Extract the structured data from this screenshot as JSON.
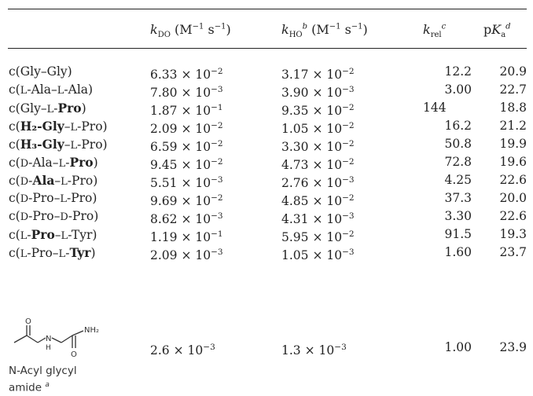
{
  "header": {
    "kdo": {
      "sym": "k",
      "sub": "DO",
      "unit": "(M",
      "exp": "−1",
      "unit2": " s",
      "exp2": "−1",
      "close": ")"
    },
    "kho": {
      "sym": "k",
      "sub": "HO",
      "sup": "b",
      "unit": " (M",
      "exp": "−1",
      "unit2": " s",
      "exp2": "−1",
      "close": ")"
    },
    "krel": {
      "sym": "k",
      "sub": "rel",
      "sup": "c"
    },
    "pka": {
      "pre": "p",
      "sym": "K",
      "sub": "a",
      "sup": "d"
    }
  },
  "rows": [
    {
      "name_parts": [
        "c(Gly–Gly)"
      ],
      "kdo_m": "6.33",
      "kdo_e": "−2",
      "kho_m": "3.17",
      "kho_e": "−2",
      "krel": "12.2",
      "pka": "20.9"
    },
    {
      "name_parts": [
        "c(",
        "L",
        "-Ala–",
        "L",
        "-Ala)"
      ],
      "kdo_m": "7.80",
      "kdo_e": "−3",
      "kho_m": "3.90",
      "kho_e": "−3",
      "krel": "3.00",
      "pka": "22.7"
    },
    {
      "name_parts": [
        "c(Gly–",
        "L",
        "-",
        "Pro",
        ")"
      ],
      "kdo_m": "1.87",
      "kdo_e": "−1",
      "kho_m": "9.35",
      "kho_e": "−2",
      "krel": "144",
      "pka": "18.8"
    },
    {
      "name_parts": [
        "c(",
        "H₂-Gly",
        "–",
        "L",
        "-Pro)"
      ],
      "kdo_m": "2.09",
      "kdo_e": "−2",
      "kho_m": "1.05",
      "kho_e": "−2",
      "krel": "16.2",
      "pka": "21.2"
    },
    {
      "name_parts": [
        "c(",
        "H₃-Gly",
        "–",
        "L",
        "-Pro)"
      ],
      "kdo_m": "6.59",
      "kdo_e": "−2",
      "kho_m": "3.30",
      "kho_e": "−2",
      "krel": "50.8",
      "pka": "19.9"
    },
    {
      "name_parts": [
        "c(",
        "D",
        "-Ala–",
        "L",
        "-",
        "Pro",
        ")"
      ],
      "kdo_m": "9.45",
      "kdo_e": "−2",
      "kho_m": "4.73",
      "kho_e": "−2",
      "krel": "72.8",
      "pka": "19.6"
    },
    {
      "name_parts": [
        "c(",
        "D",
        "-",
        "Ala",
        "–",
        "L",
        "-Pro)"
      ],
      "kdo_m": "5.51",
      "kdo_e": "−3",
      "kho_m": "2.76",
      "kho_e": "−3",
      "krel": "4.25",
      "pka": "22.6"
    },
    {
      "name_parts": [
        "c(",
        "D",
        "-Pro–",
        "L",
        "-Pro)"
      ],
      "kdo_m": "9.69",
      "kdo_e": "−2",
      "kho_m": "4.85",
      "kho_e": "−2",
      "krel": "37.3",
      "pka": "20.0"
    },
    {
      "name_parts": [
        "c(",
        "D",
        "-Pro–",
        "D",
        "-Pro)"
      ],
      "kdo_m": "8.62",
      "kdo_e": "−3",
      "kho_m": "4.31",
      "kho_e": "−3",
      "krel": "3.30",
      "pka": "22.6"
    },
    {
      "name_parts": [
        "c(",
        "L",
        "-",
        "Pro",
        "–",
        "L",
        "-Tyr)"
      ],
      "kdo_m": "1.19",
      "kdo_e": "−1",
      "kho_m": "5.95",
      "kho_e": "−2",
      "krel": "91.5",
      "pka": "19.3"
    },
    {
      "name_parts": [
        "c(",
        "L",
        "-Pro–",
        "L",
        "-",
        "Tyr",
        ")"
      ],
      "kdo_m": "2.09",
      "kdo_e": "−3",
      "kho_m": "1.05",
      "kho_e": "−3",
      "krel": "1.60",
      "pka": "23.7"
    }
  ],
  "row_styles": [
    [
      "n"
    ],
    [
      "n",
      "sc",
      "n",
      "sc",
      "n"
    ],
    [
      "n",
      "sc",
      "n",
      "b",
      "n"
    ],
    [
      "n",
      "b",
      "n",
      "sc",
      "n"
    ],
    [
      "n",
      "b",
      "n",
      "sc",
      "n"
    ],
    [
      "n",
      "sc",
      "n",
      "sc",
      "n",
      "b",
      "n"
    ],
    [
      "n",
      "sc",
      "n",
      "b",
      "n",
      "sc",
      "n"
    ],
    [
      "n",
      "sc",
      "n",
      "sc",
      "n"
    ],
    [
      "n",
      "sc",
      "n",
      "sc",
      "n"
    ],
    [
      "n",
      "sc",
      "n",
      "b",
      "n",
      "sc",
      "n"
    ],
    [
      "n",
      "sc",
      "n",
      "sc",
      "n",
      "b",
      "n"
    ]
  ],
  "times": "×",
  "ten": "10",
  "last_row": {
    "structure_labels": {
      "o_top": "O",
      "nh2": "NH₂",
      "n": "N",
      "h": "H",
      "o_bottom": "O"
    },
    "label_line1": "N-Acyl glycyl",
    "label_line2": "amide",
    "label_sup": "a",
    "kdo_m": "2.6",
    "kdo_e": "−3",
    "kho_m": "1.3",
    "kho_e": "−3",
    "krel": "1.00",
    "pka": "23.9"
  }
}
